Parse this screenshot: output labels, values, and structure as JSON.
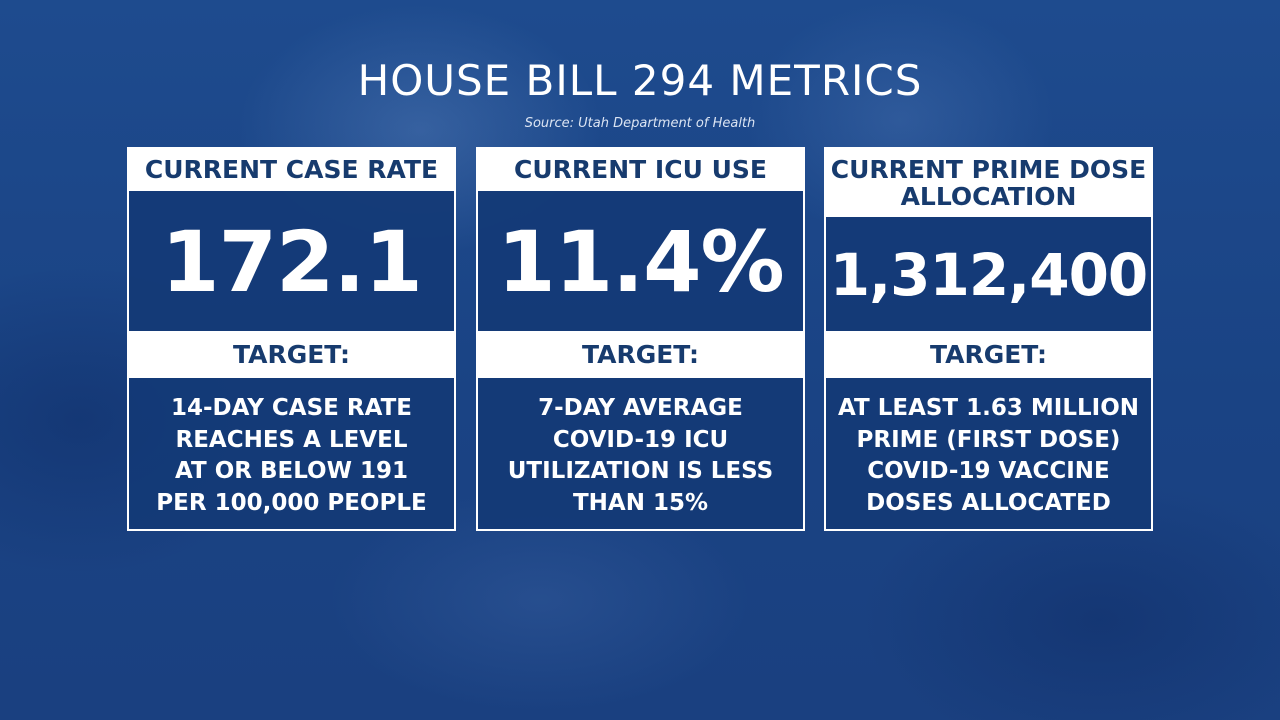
{
  "title": "HOUSE BILL 294 METRICS",
  "source": "Source: Utah Department of Health",
  "colors": {
    "background": "#1c4788",
    "panel": "#143a76",
    "header_text": "#173b6e",
    "white": "#ffffff"
  },
  "cards": [
    {
      "header_lines": [
        "CURRENT CASE RATE"
      ],
      "value": "172.1",
      "target_label": "TARGET:",
      "target_lines": [
        "14-DAY CASE RATE",
        "REACHES A LEVEL",
        "AT OR BELOW 191",
        "PER 100,000 PEOPLE"
      ]
    },
    {
      "header_lines": [
        "CURRENT ICU USE"
      ],
      "value": "11.4%",
      "target_label": "TARGET:",
      "target_lines": [
        "7-DAY AVERAGE",
        "COVID-19 ICU",
        "UTILIZATION IS LESS",
        "THAN 15%"
      ]
    },
    {
      "header_lines": [
        "CURRENT PRIME DOSE",
        "ALLOCATION"
      ],
      "value": "1,312,400",
      "target_label": "TARGET:",
      "target_lines": [
        "AT LEAST 1.63 MILLION",
        "PRIME (FIRST DOSE)",
        "COVID-19 VACCINE",
        "DOSES ALLOCATED"
      ]
    }
  ]
}
